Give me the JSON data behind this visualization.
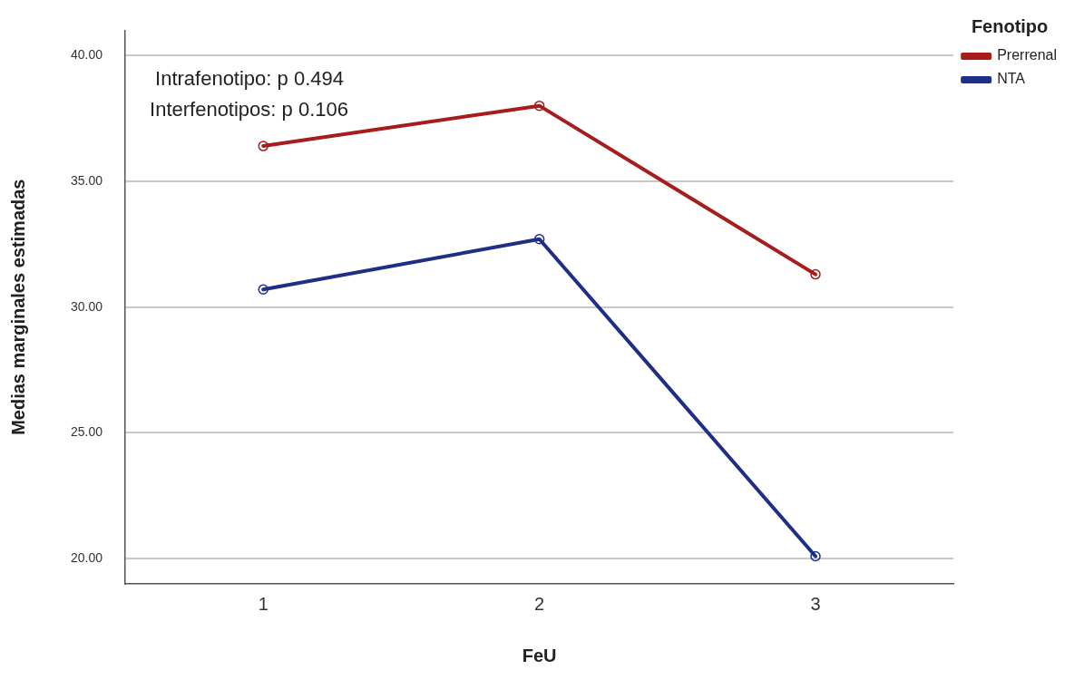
{
  "chart_data": {
    "type": "line",
    "xlabel": "FeU",
    "ylabel": "Medias marginales estimadas",
    "legend_title": "Fenotipo",
    "categories": [
      "1",
      "2",
      "3"
    ],
    "series": [
      {
        "name": "Prerrenal",
        "color": "#a81c1c",
        "values": [
          36.4,
          38.0,
          31.3
        ]
      },
      {
        "name": "NTA",
        "color": "#1f2e86",
        "values": [
          30.7,
          32.7,
          20.1
        ]
      }
    ],
    "ylim": [
      19,
      41
    ],
    "yticks": [
      {
        "value": 20,
        "label": "20.00"
      },
      {
        "value": 25,
        "label": "25.00"
      },
      {
        "value": 30,
        "label": "30.00"
      },
      {
        "value": 35,
        "label": "35.00"
      },
      {
        "value": 40,
        "label": "40.00"
      }
    ],
    "grid": "y",
    "legend": "top right",
    "marker": "circle",
    "line_style": "solid",
    "annotations": [
      "Intrafenotipo: p 0.494",
      "Interfenotipos: p 0.106"
    ]
  }
}
